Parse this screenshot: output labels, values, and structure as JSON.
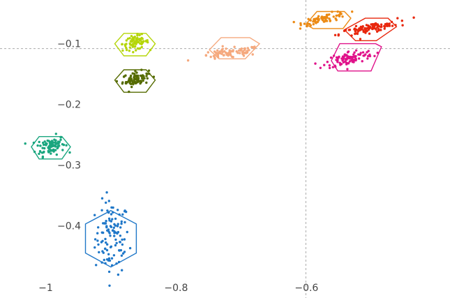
{
  "chart_data": {
    "type": "scatter",
    "title": "",
    "xlabel": "",
    "ylabel": "",
    "xlim": [
      -1.07,
      -0.38
    ],
    "ylim": [
      -0.488,
      -0.028
    ],
    "grid": false,
    "legend": "none",
    "x_ticks": [
      {
        "value": -1.0,
        "label": "−1"
      },
      {
        "value": -0.8,
        "label": "−0.8"
      },
      {
        "value": -0.6,
        "label": "−0.6"
      }
    ],
    "y_ticks": [
      {
        "value": -0.1,
        "label": "−0.1"
      },
      {
        "value": -0.2,
        "label": "−0.2"
      },
      {
        "value": -0.3,
        "label": "−0.3"
      },
      {
        "value": -0.4,
        "label": "−0.4"
      }
    ],
    "reference_lines": {
      "x": -0.601,
      "y": -0.108
    },
    "clusters": [
      {
        "color": "#1f77c8",
        "center": [
          -0.898,
          -0.42
        ],
        "spread": [
          0.013,
          0.03
        ],
        "corr": 0.0,
        "count": 110,
        "hull": [
          [
            -0.9,
            -0.375
          ],
          [
            -0.861,
            -0.397
          ],
          [
            -0.861,
            -0.445
          ],
          [
            -0.9,
            -0.468
          ],
          [
            -0.939,
            -0.445
          ],
          [
            -0.939,
            -0.397
          ]
        ]
      },
      {
        "color": "#1aa67f",
        "center": [
          -0.993,
          -0.268
        ],
        "spread": [
          0.011,
          0.008
        ],
        "corr": 0.2,
        "count": 90,
        "hull": [
          [
            -1.01,
            -0.253
          ],
          [
            -0.975,
            -0.253
          ],
          [
            -0.962,
            -0.27
          ],
          [
            -0.975,
            -0.29
          ],
          [
            -1.01,
            -0.29
          ],
          [
            -1.022,
            -0.27
          ]
        ]
      },
      {
        "color": "#556b00",
        "center": [
          -0.862,
          -0.158
        ],
        "spread": [
          0.01,
          0.006
        ],
        "corr": 0.3,
        "count": 80,
        "hull": [
          [
            -0.88,
            -0.143
          ],
          [
            -0.846,
            -0.143
          ],
          [
            -0.832,
            -0.16
          ],
          [
            -0.846,
            -0.18
          ],
          [
            -0.88,
            -0.18
          ],
          [
            -0.894,
            -0.16
          ]
        ]
      },
      {
        "color": "#b5d60a",
        "center": [
          -0.862,
          -0.098
        ],
        "spread": [
          0.01,
          0.006
        ],
        "corr": 0.2,
        "count": 80,
        "hull": [
          [
            -0.88,
            -0.083
          ],
          [
            -0.846,
            -0.083
          ],
          [
            -0.832,
            -0.1
          ],
          [
            -0.846,
            -0.12
          ],
          [
            -0.88,
            -0.12
          ],
          [
            -0.894,
            -0.1
          ]
        ]
      },
      {
        "color": "#f5a97e",
        "center": [
          -0.718,
          -0.116
        ],
        "spread": [
          0.024,
          0.005
        ],
        "corr": 0.6,
        "count": 80,
        "hull": [
          [
            -0.749,
            -0.11
          ],
          [
            -0.734,
            -0.125
          ],
          [
            -0.694,
            -0.125
          ],
          [
            -0.672,
            -0.1
          ],
          [
            -0.687,
            -0.09
          ],
          [
            -0.731,
            -0.09
          ]
        ]
      },
      {
        "color": "#ec8a14",
        "center": [
          -0.571,
          -0.058
        ],
        "spread": [
          0.017,
          0.005
        ],
        "corr": 0.7,
        "count": 70,
        "hull": [
          [
            -0.601,
            -0.068
          ],
          [
            -0.59,
            -0.075
          ],
          [
            -0.544,
            -0.075
          ],
          [
            -0.532,
            -0.058
          ],
          [
            -0.542,
            -0.047
          ],
          [
            -0.584,
            -0.047
          ]
        ]
      },
      {
        "color": "#e8260c",
        "center": [
          -0.505,
          -0.075
        ],
        "spread": [
          0.022,
          0.006
        ],
        "corr": 0.8,
        "count": 100,
        "hull": [
          [
            -0.542,
            -0.077
          ],
          [
            -0.525,
            -0.095
          ],
          [
            -0.493,
            -0.095
          ],
          [
            -0.462,
            -0.072
          ],
          [
            -0.475,
            -0.058
          ],
          [
            -0.51,
            -0.058
          ]
        ]
      },
      {
        "color": "#e0128a",
        "center": [
          -0.534,
          -0.124
        ],
        "spread": [
          0.018,
          0.007
        ],
        "corr": 0.5,
        "count": 100,
        "hull": [
          [
            -0.562,
            -0.128
          ],
          [
            -0.552,
            -0.145
          ],
          [
            -0.501,
            -0.145
          ],
          [
            -0.485,
            -0.105
          ],
          [
            -0.494,
            -0.1
          ],
          [
            -0.549,
            -0.1
          ]
        ]
      }
    ]
  }
}
